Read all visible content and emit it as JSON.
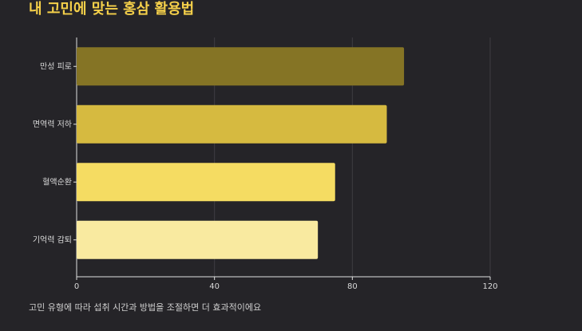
{
  "chart_data": {
    "type": "bar",
    "orientation": "horizontal",
    "title": "내 고민에 맞는 홍삼 활용법",
    "categories": [
      "만성 피로",
      "면역력 저하",
      "혈액순환",
      "기억력 감퇴"
    ],
    "values": [
      95,
      90,
      75,
      70
    ],
    "colors": [
      "#857425",
      "#d6ba40",
      "#f5dc62",
      "#f9eaa0"
    ],
    "xlim": [
      0,
      120
    ],
    "xticks": [
      0,
      40,
      80,
      120
    ],
    "grid": true,
    "note": "고민 유형에 따라 섭취 시간과 방법을 조절하면 더 효과적이에요"
  }
}
